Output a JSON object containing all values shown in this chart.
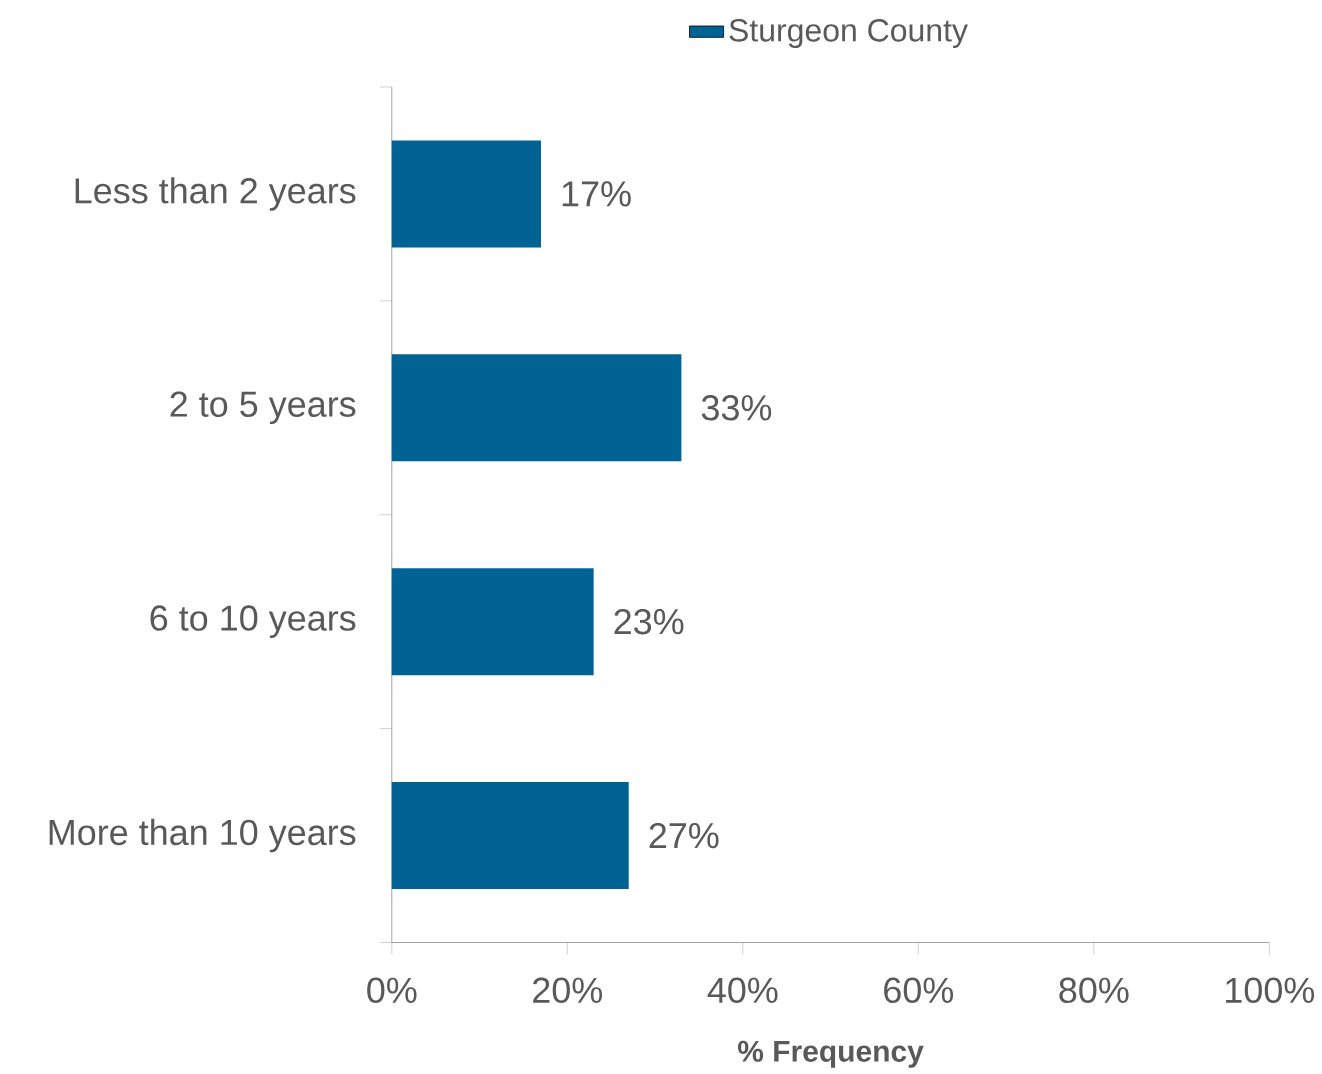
{
  "chart_data": {
    "type": "bar",
    "orientation": "horizontal",
    "categories": [
      "Less than 2 years",
      "2 to 5 years",
      "6 to 10 years",
      "More than 10 years"
    ],
    "series": [
      {
        "name": "Sturgeon County",
        "color": "#006394",
        "values": [
          17,
          33,
          23,
          27
        ]
      }
    ],
    "value_labels": [
      "17%",
      "33%",
      "23%",
      "27%"
    ],
    "xlim": [
      0,
      100
    ],
    "xticks": [
      {
        "value": 0,
        "label": "0%"
      },
      {
        "value": 20,
        "label": "20%"
      },
      {
        "value": 40,
        "label": "40%"
      },
      {
        "value": 60,
        "label": "60%"
      },
      {
        "value": 80,
        "label": "80%"
      },
      {
        "value": 100,
        "label": "100%"
      }
    ],
    "xlabel": "% Frequency",
    "legend": "top"
  }
}
